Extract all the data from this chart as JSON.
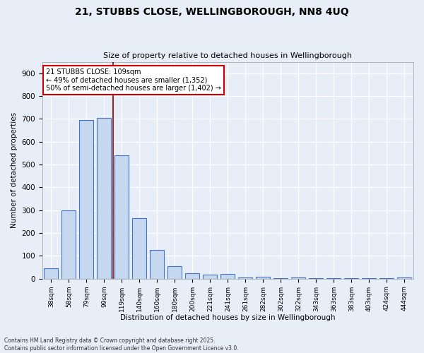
{
  "title_line1": "21, STUBBS CLOSE, WELLINGBOROUGH, NN8 4UQ",
  "title_line2": "Size of property relative to detached houses in Wellingborough",
  "xlabel": "Distribution of detached houses by size in Wellingborough",
  "ylabel": "Number of detached properties",
  "categories": [
    "38sqm",
    "58sqm",
    "79sqm",
    "99sqm",
    "119sqm",
    "140sqm",
    "160sqm",
    "180sqm",
    "200sqm",
    "221sqm",
    "241sqm",
    "261sqm",
    "282sqm",
    "302sqm",
    "322sqm",
    "343sqm",
    "363sqm",
    "383sqm",
    "403sqm",
    "424sqm",
    "444sqm"
  ],
  "values": [
    45,
    300,
    695,
    705,
    540,
    265,
    125,
    55,
    25,
    18,
    20,
    5,
    8,
    3,
    5,
    2,
    2,
    2,
    1,
    2,
    5
  ],
  "bar_color": "#c5d8f0",
  "bar_edge_color": "#4472c4",
  "vline_x": 3.5,
  "vline_color": "#8b0000",
  "annotation_text": "21 STUBBS CLOSE: 109sqm\n← 49% of detached houses are smaller (1,352)\n50% of semi-detached houses are larger (1,402) →",
  "annotation_box_color": "#ffffff",
  "annotation_box_edge_color": "#cc0000",
  "ylim": [
    0,
    950
  ],
  "yticks": [
    0,
    100,
    200,
    300,
    400,
    500,
    600,
    700,
    800,
    900
  ],
  "background_color": "#e8eef8",
  "grid_color": "#ffffff",
  "footer_line1": "Contains HM Land Registry data © Crown copyright and database right 2025.",
  "footer_line2": "Contains public sector information licensed under the Open Government Licence v3.0."
}
